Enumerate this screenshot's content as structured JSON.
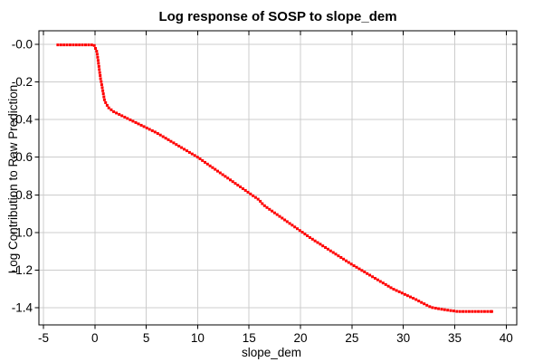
{
  "chart_data": {
    "type": "line",
    "title": "Log response of SOSP to slope_dem",
    "xlabel": "slope_dem",
    "ylabel": "Log Contribution to Raw Prediction",
    "x_tick_labels": [
      "-5",
      "0",
      "5",
      "10",
      "15",
      "20",
      "25",
      "30",
      "35",
      "40"
    ],
    "x_tick_values": [
      -5,
      0,
      5,
      10,
      15,
      20,
      25,
      30,
      35,
      40
    ],
    "y_tick_labels": [
      "-0.0",
      "-0.2",
      "-0.4",
      "-0.6",
      "-0.8",
      "-1.0",
      "-1.2",
      "-1.4"
    ],
    "y_tick_values": [
      0,
      -0.2,
      -0.4,
      -0.6,
      -0.8,
      -1.0,
      -1.2,
      -1.4
    ],
    "xlim": [
      -5.44,
      41.03
    ],
    "ylim": [
      -1.491,
      0.072
    ],
    "grid": true,
    "grid_color": "#cccccc",
    "border_color": "#000000",
    "background_color": "#ffffff",
    "legend": "none",
    "series": [
      {
        "name": "SOSP log response",
        "color": "#ff0000",
        "marker": "square-dot",
        "points": [
          [
            -3.6,
            -0.003
          ],
          [
            -0.08,
            -0.003
          ],
          [
            0.2,
            -0.04
          ],
          [
            0.55,
            -0.18
          ],
          [
            0.95,
            -0.3
          ],
          [
            1.3,
            -0.335
          ],
          [
            1.8,
            -0.357
          ],
          [
            6,
            -0.47
          ],
          [
            10,
            -0.6
          ],
          [
            16,
            -0.828
          ],
          [
            16.3,
            -0.848
          ],
          [
            16.6,
            -0.862
          ],
          [
            21,
            -1.03
          ],
          [
            25,
            -1.17
          ],
          [
            29,
            -1.3
          ],
          [
            31,
            -1.35
          ],
          [
            32.7,
            -1.398
          ],
          [
            34.2,
            -1.412
          ],
          [
            35.3,
            -1.42
          ],
          [
            38.6,
            -1.42
          ]
        ]
      }
    ]
  }
}
